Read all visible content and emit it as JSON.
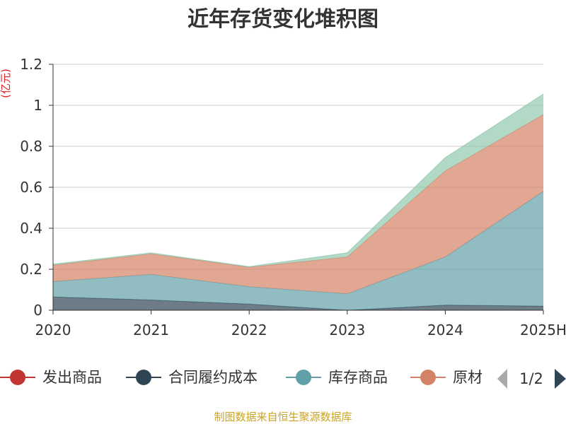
{
  "chart_data": {
    "type": "area",
    "stacked": true,
    "title": "近年存货变化堆积图",
    "unit_label": "(亿元)",
    "categories": [
      "2020",
      "2021",
      "2022",
      "2023",
      "2024",
      "2025H"
    ],
    "ylim": [
      0,
      1.2
    ],
    "yticks": [
      0,
      0.2,
      0.4,
      0.6,
      0.8,
      1,
      1.2
    ],
    "ytick_labels": [
      "0",
      "0.2",
      "0.4",
      "0.6",
      "0.8",
      "1",
      "1.2"
    ],
    "grid": true,
    "series": [
      {
        "name": "发出商品",
        "color": "#c23531",
        "values": [
          0.0,
          0.0,
          0.0,
          0.0,
          0.0,
          0.0
        ]
      },
      {
        "name": "合同履约成本",
        "color": "#2f4554",
        "values": [
          0.065,
          0.05,
          0.03,
          0.0,
          0.025,
          0.02
        ]
      },
      {
        "name": "库存商品",
        "color": "#61a0a8",
        "values": [
          0.075,
          0.125,
          0.085,
          0.08,
          0.235,
          0.56
        ]
      },
      {
        "name": "原材料",
        "color": "#d48265",
        "values": [
          0.08,
          0.1,
          0.095,
          0.18,
          0.42,
          0.375
        ]
      },
      {
        "color": "#91c7ae",
        "values": [
          0.005,
          0.005,
          0.003,
          0.02,
          0.065,
          0.1
        ]
      }
    ],
    "legend": {
      "placement": "bottom",
      "visible_items": [
        "发出商品",
        "合同履约成本",
        "库存商品",
        "原材"
      ],
      "page": "1/2"
    }
  },
  "source_note": "制图数据来自恒生聚源数据库",
  "icons": {
    "pager_prev": "triangle-left-icon",
    "pager_next": "triangle-right-icon"
  }
}
